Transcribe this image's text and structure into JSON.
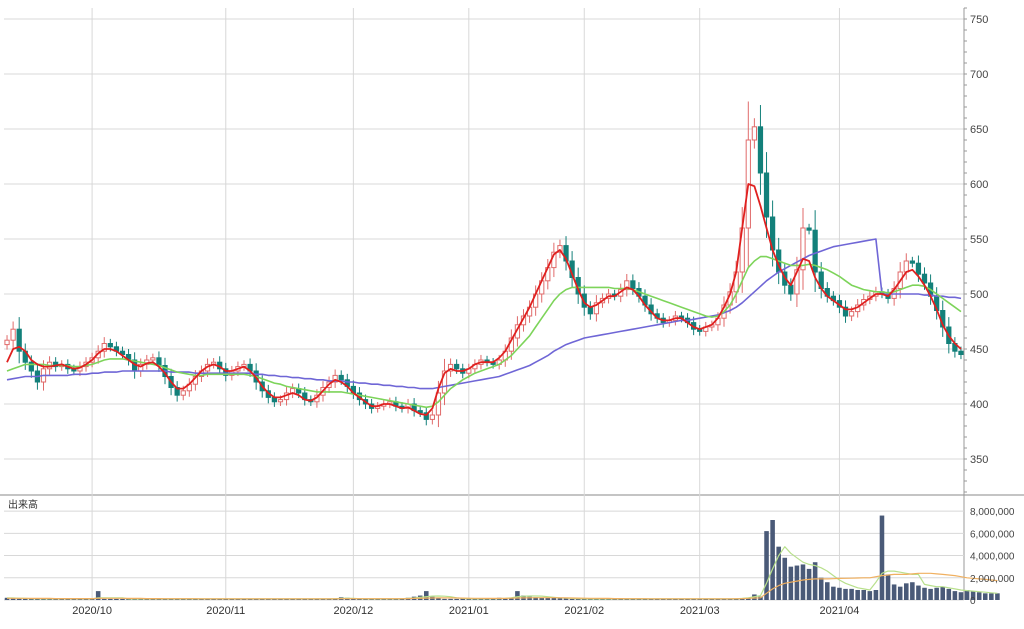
{
  "chart_data": {
    "type": "candlestick",
    "price_panel": {
      "ylim": [
        320,
        760
      ],
      "ticks": [
        350,
        400,
        450,
        500,
        550,
        600,
        650,
        700,
        750
      ],
      "tick_labels": [
        "350",
        "400",
        "450",
        "500",
        "550",
        "600",
        "650",
        "700",
        "750"
      ]
    },
    "volume_panel": {
      "label": "出来高",
      "ylim": [
        0,
        9000000
      ],
      "ticks": [
        0,
        2000000,
        4000000,
        6000000,
        8000000
      ],
      "tick_labels": [
        "0",
        "2,000,000",
        "4,000,000",
        "6,000,000",
        "8,000,000"
      ]
    },
    "x_axis": {
      "labels": [
        {
          "text": "2020/10",
          "index": 14
        },
        {
          "text": "2020/11",
          "index": 36
        },
        {
          "text": "2020/12",
          "index": 57
        },
        {
          "text": "2021/01",
          "index": 76
        },
        {
          "text": "2021/02",
          "index": 95
        },
        {
          "text": "2021/03",
          "index": 114
        },
        {
          "text": "2021/04",
          "index": 137
        }
      ]
    },
    "colors": {
      "up_body": "#ffffff",
      "up_outline": "#e06a6a",
      "down_body": "#13807a",
      "ma_short": "#e0201f",
      "ma_mid": "#7dd45a",
      "ma_long": "#6f66d6",
      "volume_bar": "#4a5a78",
      "volume_ma_short": "#b8e08c",
      "volume_ma_long": "#f0b060",
      "grid": "#d8d8d8"
    },
    "series": [
      {
        "key": "candles",
        "kind": "ohlc"
      },
      {
        "key": "ma_short",
        "kind": "line"
      },
      {
        "key": "ma_mid",
        "kind": "line"
      },
      {
        "key": "ma_long",
        "kind": "line"
      },
      {
        "key": "volume",
        "kind": "bar"
      },
      {
        "key": "volume_ma_short",
        "kind": "line"
      },
      {
        "key": "volume_ma_long",
        "kind": "line"
      }
    ],
    "closes": [
      458,
      468,
      448,
      438,
      430,
      420,
      432,
      438,
      434,
      436,
      432,
      430,
      434,
      438,
      442,
      448,
      455,
      452,
      448,
      445,
      440,
      430,
      436,
      440,
      442,
      435,
      425,
      415,
      408,
      412,
      418,
      425,
      430,
      436,
      438,
      432,
      426,
      430,
      434,
      436,
      430,
      420,
      412,
      406,
      402,
      404,
      410,
      414,
      410,
      404,
      402,
      408,
      415,
      420,
      426,
      422,
      416,
      410,
      404,
      400,
      396,
      398,
      400,
      402,
      398,
      396,
      400,
      394,
      392,
      386,
      390,
      410,
      430,
      436,
      432,
      428,
      432,
      436,
      440,
      438,
      436,
      440,
      448,
      460,
      472,
      480,
      488,
      500,
      512,
      524,
      538,
      544,
      530,
      515,
      500,
      488,
      482,
      492,
      496,
      500,
      498,
      504,
      512,
      505,
      498,
      490,
      482,
      478,
      474,
      476,
      480,
      478,
      474,
      468,
      466,
      470,
      472,
      478,
      490,
      502,
      520,
      560,
      640,
      652,
      610,
      570,
      540,
      520,
      508,
      500,
      522,
      560,
      558,
      520,
      505,
      498,
      494,
      488,
      480,
      484,
      490,
      495,
      498,
      502,
      500,
      496,
      505,
      520,
      530,
      528,
      518,
      510,
      498,
      485,
      470,
      455,
      448,
      445
    ],
    "volume": [
      0.2,
      0.15,
      0.12,
      0.1,
      0.1,
      0.1,
      0.1,
      0.1,
      0.12,
      0.1,
      0.1,
      0.1,
      0.12,
      0.1,
      0.1,
      0.8,
      0.1,
      0.1,
      0.1,
      0.1,
      0.1,
      0.1,
      0.1,
      0.1,
      0.1,
      0.1,
      0.1,
      0.1,
      0.1,
      0.1,
      0.1,
      0.1,
      0.1,
      0.1,
      0.1,
      0.1,
      0.1,
      0.1,
      0.1,
      0.1,
      0.1,
      0.1,
      0.1,
      0.1,
      0.1,
      0.1,
      0.1,
      0.1,
      0.1,
      0.1,
      0.1,
      0.1,
      0.1,
      0.1,
      0.1,
      0.25,
      0.2,
      0.1,
      0.1,
      0.1,
      0.1,
      0.1,
      0.1,
      0.1,
      0.1,
      0.1,
      0.2,
      0.3,
      0.4,
      0.8,
      0.3,
      0.2,
      0.1,
      0.1,
      0.1,
      0.15,
      0.1,
      0.1,
      0.1,
      0.1,
      0.1,
      0.2,
      0.15,
      0.2,
      0.8,
      0.4,
      0.3,
      0.25,
      0.2,
      0.2,
      0.2,
      0.15,
      0.15,
      0.1,
      0.1,
      0.1,
      0.1,
      0.1,
      0.1,
      0.12,
      0.12,
      0.1,
      0.1,
      0.1,
      0.1,
      0.1,
      0.1,
      0.1,
      0.1,
      0.1,
      0.1,
      0.1,
      0.1,
      0.1,
      0.1,
      0.1,
      0.1,
      0.1,
      0.1,
      0.1,
      0.1,
      0.15,
      0.2,
      0.5,
      0.3,
      6.2,
      7.2,
      4.8,
      3.8,
      3.0,
      3.1,
      3.2,
      2.8,
      3.4,
      2.0,
      1.6,
      1.2,
      1.1,
      1.0,
      1.0,
      0.9,
      0.9,
      0.8,
      0.9,
      7.6,
      2.3,
      1.4,
      1.2,
      1.5,
      1.6,
      1.3,
      1.1,
      1.0,
      1.1,
      1.2,
      1.0,
      0.8,
      0.7,
      0.9,
      0.8,
      0.7,
      0.6,
      0.6,
      0.6
    ],
    "ma_short": [
      438,
      450,
      452,
      448,
      440,
      436,
      434,
      434,
      435,
      436,
      434,
      432,
      433,
      436,
      440,
      446,
      450,
      450,
      448,
      444,
      440,
      436,
      434,
      437,
      438,
      434,
      428,
      420,
      414,
      414,
      418,
      424,
      430,
      434,
      436,
      434,
      430,
      430,
      432,
      434,
      430,
      424,
      416,
      410,
      406,
      406,
      408,
      410,
      408,
      404,
      403,
      406,
      412,
      418,
      422,
      420,
      416,
      410,
      406,
      402,
      398,
      398,
      400,
      400,
      398,
      396,
      397,
      394,
      391,
      390,
      396,
      414,
      428,
      432,
      430,
      430,
      432,
      436,
      438,
      438,
      438,
      442,
      448,
      458,
      468,
      478,
      488,
      500,
      512,
      524,
      536,
      540,
      532,
      518,
      504,
      492,
      488,
      490,
      494,
      498,
      498,
      502,
      506,
      504,
      498,
      490,
      484,
      478,
      476,
      476,
      478,
      478,
      474,
      470,
      468,
      470,
      472,
      478,
      488,
      500,
      520,
      560,
      600,
      598,
      580,
      560,
      540,
      526,
      515,
      508,
      520,
      532,
      530,
      515,
      505,
      498,
      494,
      490,
      486,
      486,
      488,
      492,
      496,
      500,
      500,
      498,
      504,
      512,
      520,
      522,
      516,
      508,
      498,
      486,
      472,
      462,
      455,
      450
    ],
    "ma_mid": [
      430,
      432,
      434,
      436,
      436,
      436,
      436,
      435,
      435,
      435,
      435,
      434,
      434,
      435,
      436,
      438,
      440,
      441,
      441,
      441,
      440,
      439,
      438,
      437,
      436,
      435,
      433,
      431,
      429,
      428,
      427,
      426,
      426,
      427,
      427,
      427,
      427,
      427,
      427,
      427,
      426,
      425,
      423,
      421,
      419,
      418,
      416,
      415,
      414,
      413,
      412,
      411,
      411,
      411,
      411,
      411,
      410,
      409,
      408,
      407,
      406,
      405,
      404,
      403,
      402,
      401,
      400,
      399,
      398,
      397,
      398,
      402,
      408,
      414,
      418,
      422,
      425,
      428,
      430,
      432,
      434,
      436,
      440,
      444,
      450,
      456,
      462,
      470,
      478,
      486,
      494,
      500,
      504,
      506,
      506,
      506,
      506,
      506,
      506,
      506,
      505,
      505,
      505,
      504,
      502,
      500,
      498,
      496,
      494,
      492,
      490,
      488,
      486,
      484,
      482,
      480,
      479,
      480,
      484,
      490,
      500,
      512,
      524,
      530,
      534,
      534,
      532,
      530,
      528,
      526,
      526,
      526,
      527,
      526,
      524,
      522,
      519,
      516,
      512,
      508,
      506,
      504,
      503,
      502,
      502,
      501,
      502,
      504,
      506,
      508,
      508,
      507,
      504,
      500,
      496,
      492,
      488,
      484
    ],
    "ma_long": [
      422,
      423,
      424,
      425,
      425,
      425,
      426,
      426,
      426,
      426,
      426,
      427,
      427,
      427,
      428,
      428,
      429,
      429,
      429,
      430,
      430,
      430,
      430,
      430,
      430,
      430,
      430,
      429,
      429,
      429,
      429,
      428,
      428,
      428,
      428,
      428,
      428,
      428,
      428,
      428,
      428,
      427,
      427,
      426,
      426,
      425,
      425,
      424,
      424,
      423,
      423,
      422,
      422,
      421,
      421,
      421,
      420,
      420,
      419,
      419,
      418,
      418,
      417,
      417,
      416,
      416,
      415,
      415,
      414,
      414,
      414,
      415,
      416,
      417,
      418,
      419,
      420,
      421,
      422,
      423,
      424,
      425,
      427,
      429,
      431,
      433,
      435,
      438,
      441,
      444,
      448,
      451,
      454,
      456,
      458,
      460,
      461,
      462,
      463,
      464,
      465,
      466,
      467,
      468,
      469,
      470,
      471,
      472,
      473,
      474,
      475,
      476,
      476,
      477,
      478,
      479,
      480,
      481,
      483,
      485,
      488,
      492,
      497,
      502,
      507,
      512,
      516,
      520,
      523,
      526,
      529,
      532,
      535,
      537,
      539,
      541,
      543,
      544,
      545,
      546,
      547,
      548,
      549,
      550,
      500,
      500,
      500,
      500,
      500,
      500,
      500,
      499,
      499,
      498,
      498,
      497,
      497,
      496
    ],
    "volume_ma_short": [
      0.2,
      0.18,
      0.16,
      0.14,
      0.12,
      0.12,
      0.11,
      0.11,
      0.11,
      0.11,
      0.11,
      0.11,
      0.11,
      0.11,
      0.11,
      0.2,
      0.2,
      0.2,
      0.2,
      0.2,
      0.1,
      0.1,
      0.1,
      0.1,
      0.1,
      0.1,
      0.1,
      0.1,
      0.1,
      0.1,
      0.1,
      0.1,
      0.1,
      0.1,
      0.1,
      0.1,
      0.1,
      0.1,
      0.1,
      0.1,
      0.1,
      0.1,
      0.1,
      0.1,
      0.1,
      0.1,
      0.1,
      0.1,
      0.1,
      0.1,
      0.1,
      0.1,
      0.1,
      0.1,
      0.12,
      0.14,
      0.16,
      0.14,
      0.12,
      0.1,
      0.1,
      0.1,
      0.1,
      0.1,
      0.1,
      0.12,
      0.14,
      0.18,
      0.24,
      0.3,
      0.35,
      0.36,
      0.34,
      0.3,
      0.2,
      0.14,
      0.12,
      0.11,
      0.11,
      0.11,
      0.12,
      0.13,
      0.14,
      0.2,
      0.3,
      0.34,
      0.36,
      0.36,
      0.35,
      0.3,
      0.24,
      0.2,
      0.17,
      0.14,
      0.12,
      0.11,
      0.1,
      0.1,
      0.1,
      0.1,
      0.1,
      0.1,
      0.1,
      0.1,
      0.1,
      0.1,
      0.1,
      0.1,
      0.1,
      0.1,
      0.1,
      0.1,
      0.1,
      0.1,
      0.1,
      0.1,
      0.1,
      0.1,
      0.1,
      0.1,
      0.11,
      0.14,
      0.2,
      0.3,
      0.4,
      1.5,
      2.8,
      4.0,
      4.8,
      4.2,
      3.8,
      3.4,
      3.2,
      3.1,
      2.9,
      2.6,
      2.2,
      1.8,
      1.5,
      1.3,
      1.1,
      1.0,
      0.9,
      1.6,
      2.4,
      2.6,
      2.6,
      2.5,
      2.4,
      2.3,
      2.3,
      1.4,
      1.3,
      1.2,
      1.2,
      1.1,
      1.0,
      0.9,
      0.85,
      0.8,
      0.75,
      0.7,
      0.65,
      0.6
    ],
    "volume_ma_long": [
      0.15,
      0.15,
      0.15,
      0.15,
      0.14,
      0.14,
      0.14,
      0.14,
      0.13,
      0.13,
      0.13,
      0.13,
      0.13,
      0.13,
      0.13,
      0.15,
      0.15,
      0.15,
      0.15,
      0.15,
      0.14,
      0.14,
      0.14,
      0.13,
      0.13,
      0.13,
      0.12,
      0.12,
      0.12,
      0.12,
      0.12,
      0.12,
      0.11,
      0.11,
      0.11,
      0.11,
      0.11,
      0.11,
      0.11,
      0.11,
      0.11,
      0.11,
      0.11,
      0.11,
      0.11,
      0.11,
      0.11,
      0.11,
      0.11,
      0.11,
      0.11,
      0.11,
      0.11,
      0.11,
      0.11,
      0.12,
      0.12,
      0.12,
      0.12,
      0.12,
      0.12,
      0.12,
      0.12,
      0.12,
      0.12,
      0.12,
      0.13,
      0.14,
      0.15,
      0.17,
      0.18,
      0.19,
      0.19,
      0.19,
      0.18,
      0.17,
      0.16,
      0.15,
      0.15,
      0.14,
      0.14,
      0.14,
      0.14,
      0.16,
      0.18,
      0.19,
      0.2,
      0.21,
      0.21,
      0.21,
      0.21,
      0.2,
      0.19,
      0.18,
      0.17,
      0.16,
      0.15,
      0.15,
      0.14,
      0.14,
      0.13,
      0.13,
      0.12,
      0.12,
      0.12,
      0.12,
      0.11,
      0.11,
      0.11,
      0.11,
      0.11,
      0.11,
      0.11,
      0.11,
      0.11,
      0.11,
      0.11,
      0.11,
      0.11,
      0.11,
      0.12,
      0.13,
      0.15,
      0.18,
      0.2,
      0.6,
      1.0,
      1.3,
      1.5,
      1.6,
      1.7,
      1.8,
      1.85,
      1.9,
      1.9,
      1.9,
      1.92,
      1.94,
      1.95,
      1.96,
      1.98,
      2.0,
      2.0,
      2.1,
      2.2,
      2.25,
      2.3,
      2.3,
      2.3,
      2.35,
      2.4,
      2.4,
      2.4,
      2.35,
      2.3,
      2.25,
      2.2,
      2.1,
      2.0,
      1.95,
      1.9,
      1.85,
      1.8,
      1.75
    ]
  }
}
